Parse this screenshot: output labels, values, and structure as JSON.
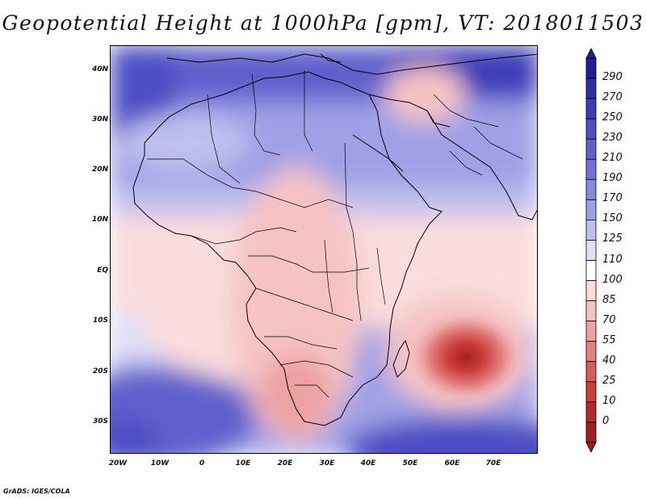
{
  "title": "Geopotential Height at 1000hPa [gpm], VT: 2018011503",
  "footer": "GrADS: IGES/COLA",
  "map": {
    "lat_labels": [
      "40N",
      "30N",
      "20N",
      "10N",
      "EQ",
      "10S",
      "20S",
      "30S"
    ],
    "lon_labels": [
      "20W",
      "10W",
      "0",
      "10E",
      "20E",
      "30E",
      "40E",
      "50E",
      "60E",
      "70E"
    ]
  },
  "colorbar": {
    "levels": [
      "290",
      "270",
      "250",
      "230",
      "210",
      "190",
      "170",
      "150",
      "125",
      "110",
      "100",
      "85",
      "70",
      "55",
      "40",
      "25",
      "10",
      "0"
    ],
    "colors": [
      "#1f1f99",
      "#2e2eaa",
      "#3d3db8",
      "#4e4ec4",
      "#6060cc",
      "#7373d5",
      "#8888dd",
      "#a0a0e6",
      "#c0c0ee",
      "#dedef6",
      "#ffffff",
      "#fadcdc",
      "#f5c3c3",
      "#eda2a2",
      "#e38080",
      "#d85c5c",
      "#cc3d3d",
      "#b52a2a",
      "#9e1f1f"
    ]
  }
}
